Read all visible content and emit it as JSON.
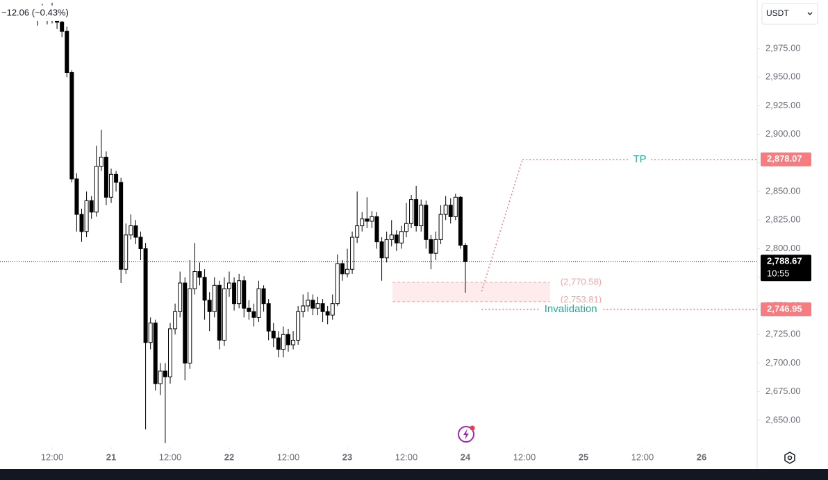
{
  "chart_data": {
    "type": "candlestick",
    "header": {
      "change": "−12.06 (−0.43%)",
      "currency": "USDT"
    },
    "x": [
      9,
      10,
      11,
      12,
      13,
      14,
      15,
      16,
      17,
      18,
      19,
      20,
      21,
      22,
      23,
      24,
      25,
      26,
      27,
      28,
      29,
      30,
      31,
      32,
      33,
      34,
      35,
      36,
      37,
      38,
      39,
      40,
      41,
      42,
      43,
      44,
      45,
      46,
      47,
      48,
      49,
      50,
      51,
      52,
      53,
      54,
      55,
      56,
      57,
      58,
      59,
      60,
      61,
      62,
      63,
      64,
      65,
      66,
      67,
      68,
      69,
      70,
      71,
      72,
      73,
      74,
      75,
      76,
      77,
      78,
      79,
      80,
      81,
      82,
      83,
      84,
      85,
      86,
      87,
      88,
      89,
      90,
      91,
      92,
      93,
      94,
      95,
      96
    ],
    "series": [
      {
        "up_color": "#ffffff",
        "down_color": "#000000",
        "border_color": "#000000",
        "open": [
          3000,
          3005,
          3008,
          3002,
          3006,
          2998,
          2990,
          2954,
          2861,
          2830,
          2815,
          2842,
          2832,
          2872,
          2880,
          2845,
          2865,
          2858,
          2782,
          2812,
          2820,
          2810,
          2800,
          2718,
          2735,
          2682,
          2693,
          2688,
          2730,
          2745,
          2770,
          2700,
          2765,
          2780,
          2775,
          2755,
          2745,
          2768,
          2720,
          2765,
          2770,
          2752,
          2772,
          2748,
          2745,
          2740,
          2765,
          2752,
          2728,
          2722,
          2712,
          2725,
          2716,
          2720,
          2745,
          2750,
          2755,
          2748,
          2752,
          2745,
          2742,
          2752,
          2787,
          2778,
          2782,
          2810,
          2820,
          2826,
          2824,
          2828,
          2806,
          2792,
          2808,
          2812,
          2805,
          2815,
          2822,
          2843,
          2820,
          2838,
          2808,
          2796,
          2808,
          2830,
          2838,
          2828,
          2845,
          2803
        ],
        "high": [
          3012,
          3014,
          3012,
          3015,
          3010,
          3002,
          2994,
          2956,
          2866,
          2835,
          2850,
          2846,
          2890,
          2904,
          2885,
          2870,
          2868,
          2862,
          2822,
          2830,
          2825,
          2815,
          2805,
          2740,
          2738,
          2700,
          2700,
          2735,
          2752,
          2780,
          2775,
          2790,
          2805,
          2788,
          2782,
          2762,
          2775,
          2772,
          2775,
          2780,
          2775,
          2778,
          2776,
          2755,
          2752,
          2772,
          2768,
          2756,
          2735,
          2728,
          2732,
          2730,
          2728,
          2750,
          2760,
          2762,
          2760,
          2758,
          2756,
          2750,
          2760,
          2795,
          2790,
          2800,
          2815,
          2850,
          2832,
          2845,
          2833,
          2832,
          2810,
          2815,
          2825,
          2816,
          2820,
          2840,
          2847,
          2855,
          2843,
          2842,
          2812,
          2815,
          2838,
          2846,
          2844,
          2848,
          2846,
          2805
        ],
        "low": [
          2995,
          3000,
          2996,
          2997,
          2992,
          2985,
          2950,
          2858,
          2815,
          2806,
          2810,
          2826,
          2828,
          2868,
          2838,
          2840,
          2850,
          2770,
          2778,
          2808,
          2804,
          2790,
          2642,
          2712,
          2676,
          2672,
          2630,
          2682,
          2725,
          2740,
          2685,
          2695,
          2760,
          2768,
          2738,
          2728,
          2740,
          2712,
          2715,
          2758,
          2746,
          2748,
          2740,
          2738,
          2732,
          2736,
          2745,
          2720,
          2714,
          2705,
          2705,
          2710,
          2712,
          2716,
          2740,
          2745,
          2742,
          2742,
          2736,
          2734,
          2738,
          2750,
          2772,
          2775,
          2778,
          2805,
          2815,
          2818,
          2818,
          2800,
          2772,
          2788,
          2802,
          2798,
          2800,
          2810,
          2818,
          2815,
          2815,
          2800,
          2782,
          2790,
          2804,
          2825,
          2822,
          2825,
          2800,
          2761.5
        ],
        "close": [
          3005,
          3008,
          3002,
          3006,
          2998,
          2990,
          2954,
          2861,
          2830,
          2815,
          2842,
          2832,
          2872,
          2880,
          2845,
          2865,
          2858,
          2782,
          2812,
          2820,
          2810,
          2800,
          2718,
          2735,
          2682,
          2693,
          2688,
          2730,
          2745,
          2770,
          2700,
          2765,
          2780,
          2775,
          2755,
          2745,
          2768,
          2720,
          2765,
          2770,
          2752,
          2772,
          2748,
          2745,
          2740,
          2765,
          2752,
          2728,
          2722,
          2712,
          2725,
          2716,
          2720,
          2745,
          2750,
          2755,
          2748,
          2752,
          2745,
          2742,
          2752,
          2787,
          2778,
          2782,
          2810,
          2820,
          2826,
          2824,
          2828,
          2806,
          2792,
          2808,
          2812,
          2805,
          2815,
          2822,
          2843,
          2820,
          2838,
          2808,
          2796,
          2808,
          2830,
          2838,
          2828,
          2845,
          2803,
          2788.67
        ]
      }
    ],
    "xlim": [
      1.41,
      155.3
    ],
    "xticks": [
      {
        "value": 12,
        "label": "12:00"
      },
      {
        "value": 24,
        "label": "21"
      },
      {
        "value": 36,
        "label": "12:00"
      },
      {
        "value": 48,
        "label": "22"
      },
      {
        "value": 60,
        "label": "12:00"
      },
      {
        "value": 72,
        "label": "23"
      },
      {
        "value": 84,
        "label": "12:00"
      },
      {
        "value": 96,
        "label": "24"
      },
      {
        "value": 108,
        "label": "12:00"
      },
      {
        "value": 120,
        "label": "25"
      },
      {
        "value": 132,
        "label": "12:00"
      },
      {
        "value": 144,
        "label": "26"
      }
    ],
    "ylim": [
      2626.3,
      3017.4
    ],
    "yticks": [
      {
        "value": 2650,
        "label": "2,650.00"
      },
      {
        "value": 2675,
        "label": "2,675.00"
      },
      {
        "value": 2700,
        "label": "2,700.00"
      },
      {
        "value": 2725,
        "label": "2,725.00"
      },
      {
        "value": 2750,
        "label": "2,750.00"
      },
      {
        "value": 2775,
        "label": "2,775.00"
      },
      {
        "value": 2800,
        "label": "2,800.00"
      },
      {
        "value": 2825,
        "label": "2,825.00"
      },
      {
        "value": 2850,
        "label": "2,850.00"
      },
      {
        "value": 2875,
        "label": "2,875.00"
      },
      {
        "value": 2900,
        "label": "2,900.00"
      },
      {
        "value": 2925,
        "label": "2,925.00"
      },
      {
        "value": 2950,
        "label": "2,950.00"
      },
      {
        "value": 2975,
        "label": "2,975.00"
      }
    ],
    "grid": false,
    "last_price": {
      "value": 2788.67,
      "label": "2,788.67",
      "countdown": "10:55",
      "color": "#000000"
    },
    "tp": {
      "text": "TP",
      "value": 2878.07,
      "label": "2,878.07",
      "x": [
        99.3,
        107.6
      ],
      "color": "#f77c80",
      "text_color": "#22ab94"
    },
    "invalidation": {
      "text": "Invalidation",
      "value": 2746.95,
      "label": "2,746.95",
      "x": [
        99.3
      ],
      "color": "#f77c80",
      "text_color": "#22ab94"
    },
    "zone": {
      "high": 2770.58,
      "low": 2753.81,
      "high_label": "(2,770.58)",
      "low_label": "(2,753.81)",
      "x": [
        81.2,
        113.2
      ],
      "color": "#f7a5a8"
    }
  }
}
